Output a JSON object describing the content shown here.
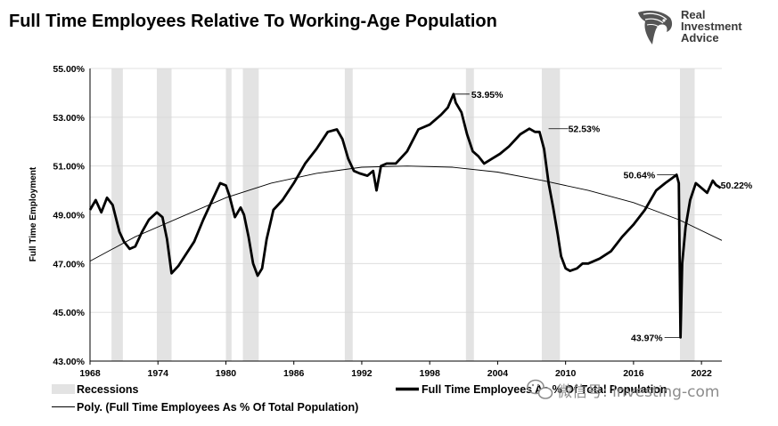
{
  "page": {
    "title": "Full Time Employees Relative To Working-Age Population"
  },
  "logo": {
    "lines": [
      "Real",
      "Investment",
      "Advice"
    ],
    "icon": "eagle-head-icon"
  },
  "watermark": {
    "icon": "wechat-icon",
    "text": "微信号: investing-com"
  },
  "colors": {
    "series_line": "#000000",
    "trend_line": "#000000",
    "recession_band": "#e3e3e3",
    "grid": "#d9d9d9"
  },
  "chart_data": {
    "type": "line",
    "title": "Full Time Employees Relative To Working-Age Population",
    "xlabel": "",
    "ylabel": "Full Time Employment",
    "xlim": [
      1968,
      2023.8
    ],
    "ylim": [
      43,
      55
    ],
    "y_ticks": [
      "43.00%",
      "45.00%",
      "47.00%",
      "49.00%",
      "51.00%",
      "53.00%",
      "55.00%"
    ],
    "x_ticks": [
      "1968",
      "1974",
      "1980",
      "1986",
      "1992",
      "1998",
      "2004",
      "2010",
      "2016",
      "2022"
    ],
    "grid": "horizontal",
    "legend_position": "bottom",
    "recessions": [
      [
        1969.9,
        1970.9
      ],
      [
        1973.9,
        1975.2
      ],
      [
        1980.0,
        1980.5
      ],
      [
        1981.5,
        1982.9
      ],
      [
        1990.5,
        1991.2
      ],
      [
        2001.2,
        2001.9
      ],
      [
        2007.9,
        2009.5
      ],
      [
        2020.1,
        2021.4
      ]
    ],
    "series": [
      {
        "name": "Full Time Employees As % Of Total Population",
        "style": "thick",
        "x": [
          1968.0,
          1968.5,
          1969.0,
          1969.5,
          1970.0,
          1970.6,
          1971.0,
          1971.5,
          1972.0,
          1972.6,
          1973.2,
          1973.9,
          1974.4,
          1974.8,
          1975.2,
          1975.8,
          1976.5,
          1977.2,
          1978.0,
          1978.8,
          1979.5,
          1980.0,
          1980.3,
          1980.8,
          1981.3,
          1981.6,
          1982.0,
          1982.4,
          1982.8,
          1983.2,
          1983.6,
          1984.2,
          1985.0,
          1986.0,
          1987.0,
          1988.0,
          1989.0,
          1989.8,
          1990.3,
          1990.8,
          1991.3,
          1991.8,
          1992.5,
          1993.0,
          1993.3,
          1993.7,
          1994.2,
          1995.0,
          1996.0,
          1997.0,
          1998.0,
          1999.0,
          1999.6,
          2000.1,
          2000.3,
          2000.8,
          2001.3,
          2001.8,
          2002.3,
          2002.8,
          2003.5,
          2004.2,
          2005.0,
          2006.0,
          2006.8,
          2007.3,
          2007.7,
          2008.1,
          2008.5,
          2008.9,
          2009.3,
          2009.6,
          2010.0,
          2010.4,
          2011.0,
          2011.5,
          2012.0,
          2013.0,
          2014.0,
          2015.0,
          2016.0,
          2017.0,
          2018.0,
          2018.8,
          2019.4,
          2019.8,
          2020.0,
          2020.15,
          2020.3,
          2020.6,
          2021.0,
          2021.5,
          2022.0,
          2022.5,
          2023.0,
          2023.3,
          2023.7
        ],
        "y": [
          49.2,
          49.6,
          49.1,
          49.7,
          49.4,
          48.3,
          47.9,
          47.6,
          47.7,
          48.3,
          48.8,
          49.1,
          48.9,
          48.0,
          46.6,
          46.9,
          47.4,
          47.9,
          48.8,
          49.6,
          50.3,
          50.2,
          49.8,
          48.9,
          49.3,
          49.0,
          48.1,
          47.0,
          46.5,
          46.8,
          48.0,
          49.2,
          49.6,
          50.3,
          51.1,
          51.7,
          52.4,
          52.5,
          52.1,
          51.3,
          50.8,
          50.7,
          50.6,
          50.8,
          50.0,
          51.0,
          51.1,
          51.1,
          51.6,
          52.5,
          52.7,
          53.1,
          53.4,
          53.95,
          53.6,
          53.2,
          52.3,
          51.6,
          51.4,
          51.1,
          51.3,
          51.5,
          51.8,
          52.3,
          52.53,
          52.4,
          52.4,
          51.7,
          50.3,
          49.3,
          48.2,
          47.3,
          46.8,
          46.7,
          46.8,
          47.0,
          47.0,
          47.2,
          47.5,
          48.1,
          48.6,
          49.2,
          50.0,
          50.3,
          50.5,
          50.64,
          50.3,
          43.97,
          47.0,
          48.5,
          49.6,
          50.3,
          50.1,
          49.9,
          50.4,
          50.22,
          50.1
        ]
      },
      {
        "name": "Poly. (Full Time Employees As % Of Total Population)",
        "style": "thin",
        "x": [
          1968,
          1972,
          1976,
          1980,
          1984,
          1988,
          1992,
          1996,
          2000,
          2004,
          2008,
          2012,
          2016,
          2020,
          2023.8
        ],
        "y": [
          47.1,
          48.1,
          48.9,
          49.7,
          50.3,
          50.7,
          50.95,
          51.0,
          50.95,
          50.75,
          50.4,
          50.0,
          49.5,
          48.8,
          47.95
        ]
      }
    ],
    "annotations": [
      {
        "text": "53.95%",
        "x": 2000.1,
        "y": 53.95
      },
      {
        "text": "52.53%",
        "x": 2008.5,
        "y": 52.53
      },
      {
        "text": "50.64%",
        "x": 2019.8,
        "y": 50.64
      },
      {
        "text": "43.97%",
        "x": 2020.15,
        "y": 43.97
      },
      {
        "text": "50.22%",
        "x": 2023.3,
        "y": 50.22
      }
    ],
    "legend": [
      {
        "label": "Recessions",
        "style": "band"
      },
      {
        "label": "Full Time Employees As % Of Total Population",
        "style": "thick"
      },
      {
        "label": "Poly. (Full Time Employees As % Of Total Population)",
        "style": "thin"
      }
    ]
  }
}
